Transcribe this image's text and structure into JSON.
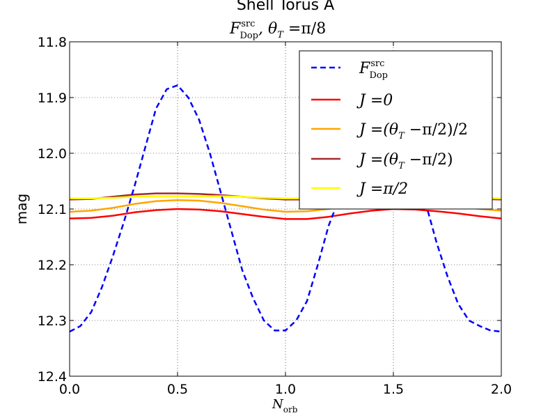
{
  "chart_data": {
    "type": "line",
    "title": "Shell Torus A",
    "subtitle": {
      "symbol": "F",
      "superscript": "src",
      "subscript": "Dop",
      "rest": ", θ",
      "rest_subscript": "T",
      "rest_end": " =π/8"
    },
    "xlabel": {
      "symbol": "N",
      "subscript": "orb"
    },
    "ylabel": "mag",
    "xlim": [
      0.0,
      2.0
    ],
    "ylim": [
      12.4,
      11.8
    ],
    "y_inverted": true,
    "grid": true,
    "legend_position": "upper-right",
    "x_ticks": [
      "0.0",
      "0.5",
      "1.0",
      "1.5",
      "2.0"
    ],
    "y_ticks": [
      "11.8",
      "11.9",
      "12.0",
      "12.1",
      "12.2",
      "12.3",
      "12.4"
    ],
    "series": [
      {
        "name": "F_Dop^src",
        "legend": {
          "symbol": "F",
          "superscript": "src",
          "subscript": "Dop"
        },
        "color": "#0000ff",
        "dash": "dashed",
        "x": [
          0.0,
          0.05,
          0.1,
          0.15,
          0.2,
          0.25,
          0.3,
          0.35,
          0.4,
          0.45,
          0.5,
          0.55,
          0.6,
          0.65,
          0.7,
          0.75,
          0.8,
          0.85,
          0.9,
          0.95,
          1.0,
          1.05,
          1.1,
          1.15,
          1.2,
          1.25,
          1.5,
          1.6,
          1.65,
          1.7,
          1.75,
          1.8,
          1.85,
          1.9,
          1.95,
          2.0
        ],
        "y": [
          12.32,
          12.31,
          12.285,
          12.24,
          12.185,
          12.125,
          12.06,
          11.99,
          11.92,
          11.885,
          11.878,
          11.9,
          11.94,
          12.0,
          12.07,
          12.14,
          12.21,
          12.26,
          12.3,
          12.318,
          12.318,
          12.3,
          12.265,
          12.2,
          12.13,
          12.08,
          11.9,
          12.02,
          12.09,
          12.16,
          12.22,
          12.27,
          12.3,
          12.31,
          12.318,
          12.32
        ]
      },
      {
        "name": "J=0",
        "legend": {
          "text": "J =0"
        },
        "color": "#ff0000",
        "x": [
          0.0,
          0.1,
          0.2,
          0.3,
          0.4,
          0.5,
          0.6,
          0.7,
          0.8,
          0.9,
          1.0,
          1.1,
          1.2,
          1.3,
          1.4,
          1.5,
          1.6,
          1.7,
          1.8,
          1.9,
          2.0
        ],
        "y": [
          12.117,
          12.116,
          12.112,
          12.106,
          12.102,
          12.1,
          12.101,
          12.104,
          12.109,
          12.114,
          12.118,
          12.118,
          12.114,
          12.108,
          12.103,
          12.1,
          12.101,
          12.104,
          12.108,
          12.113,
          12.117
        ]
      },
      {
        "name": "J=(θ_T-π/2)/2",
        "legend": {
          "text": "J =(θ",
          "subscript": "T",
          "text_end": " −π/2)/2"
        },
        "color": "#ffa500",
        "x": [
          0.0,
          0.1,
          0.2,
          0.3,
          0.4,
          0.5,
          0.6,
          0.7,
          0.8,
          0.9,
          1.0,
          1.1,
          1.2,
          1.3,
          1.4,
          1.5,
          1.6,
          1.7,
          1.8,
          1.9,
          2.0
        ],
        "y": [
          12.105,
          12.103,
          12.098,
          12.091,
          12.086,
          12.084,
          12.085,
          12.089,
          12.095,
          12.101,
          12.105,
          12.104,
          12.1,
          12.093,
          12.087,
          12.085,
          12.086,
          12.09,
          12.095,
          12.1,
          12.103
        ]
      },
      {
        "name": "J=(θ_T-π/2)",
        "legend": {
          "text": "J =(θ",
          "subscript": "T",
          "text_end": " −π/2)"
        },
        "color": "#a52a2a",
        "x": [
          0.0,
          0.1,
          0.2,
          0.3,
          0.4,
          0.5,
          0.6,
          0.7,
          0.8,
          0.9,
          1.0,
          1.1,
          1.2,
          1.3,
          1.4,
          1.5,
          1.6,
          1.7,
          1.8,
          1.9,
          2.0
        ],
        "y": [
          12.083,
          12.082,
          12.078,
          12.074,
          12.072,
          12.072,
          12.073,
          12.075,
          12.078,
          12.081,
          12.083,
          12.083,
          12.08,
          12.076,
          12.073,
          12.072,
          12.073,
          12.076,
          12.079,
          12.082,
          12.083
        ]
      },
      {
        "name": "J=π/2",
        "legend": {
          "text": "J =π/2"
        },
        "color": "#ffff00",
        "x": [
          0.0,
          0.1,
          0.2,
          0.3,
          0.4,
          0.5,
          0.6,
          0.7,
          0.8,
          0.9,
          1.0,
          1.1,
          1.2,
          1.3,
          1.4,
          1.5,
          1.6,
          1.7,
          1.8,
          1.9,
          2.0
        ],
        "y": [
          12.081,
          12.081,
          12.08,
          12.078,
          12.077,
          12.077,
          12.077,
          12.077,
          12.078,
          12.08,
          12.081,
          12.081,
          12.08,
          12.078,
          12.077,
          12.077,
          12.077,
          12.078,
          12.079,
          12.08,
          12.081
        ]
      }
    ]
  }
}
